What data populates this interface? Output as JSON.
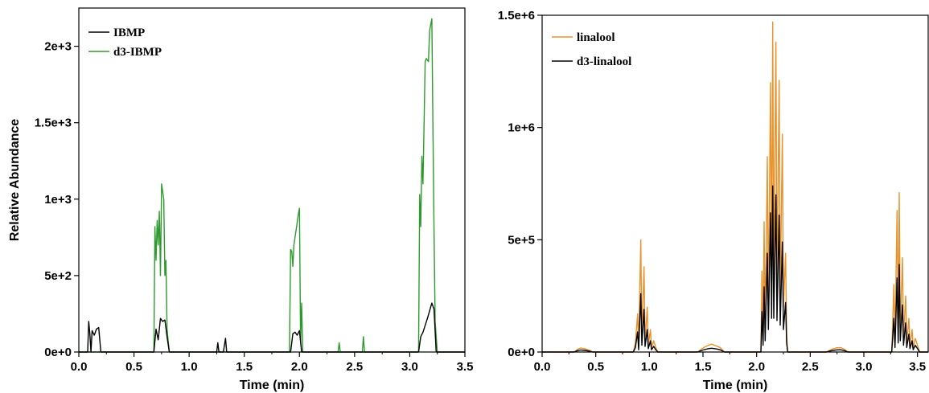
{
  "chart_data": [
    {
      "type": "line",
      "title": "",
      "xlabel": "Time (min)",
      "ylabel": "Relative Abundance",
      "xlim": [
        0,
        3.5
      ],
      "ylim": [
        0,
        2250
      ],
      "xticks": [
        "0.0",
        "0.5",
        "1.0",
        "1.5",
        "2.0",
        "2.5",
        "3.0",
        "3.5"
      ],
      "yticks": [
        "0e+0",
        "5e+2",
        "1e+3",
        "1.5e+3",
        "2e+3"
      ],
      "grid": false,
      "legend": "top-left",
      "series": [
        {
          "name": "IBMP",
          "color": "#000000",
          "points": [
            [
              0.0,
              0
            ],
            [
              0.08,
              0
            ],
            [
              0.09,
              200
            ],
            [
              0.1,
              120
            ],
            [
              0.11,
              0
            ],
            [
              0.12,
              140
            ],
            [
              0.14,
              110
            ],
            [
              0.16,
              150
            ],
            [
              0.18,
              160
            ],
            [
              0.2,
              0
            ],
            [
              0.22,
              0
            ],
            [
              0.68,
              0
            ],
            [
              0.7,
              150
            ],
            [
              0.72,
              80
            ],
            [
              0.74,
              220
            ],
            [
              0.76,
              200
            ],
            [
              0.78,
              210
            ],
            [
              0.8,
              100
            ],
            [
              0.82,
              0
            ],
            [
              1.25,
              0
            ],
            [
              1.26,
              60
            ],
            [
              1.27,
              0
            ],
            [
              1.31,
              0
            ],
            [
              1.33,
              90
            ],
            [
              1.34,
              0
            ],
            [
              1.92,
              0
            ],
            [
              1.94,
              120
            ],
            [
              1.96,
              130
            ],
            [
              1.98,
              110
            ],
            [
              2.0,
              140
            ],
            [
              2.02,
              0
            ],
            [
              3.08,
              0
            ],
            [
              3.1,
              100
            ],
            [
              3.12,
              130
            ],
            [
              3.16,
              220
            ],
            [
              3.2,
              320
            ],
            [
              3.22,
              280
            ],
            [
              3.24,
              0
            ],
            [
              3.26,
              0
            ],
            [
              3.5,
              0
            ]
          ]
        },
        {
          "name": "d3-IBMP",
          "color": "#2e9a2e",
          "points": [
            [
              0.0,
              0
            ],
            [
              0.68,
              0
            ],
            [
              0.69,
              820
            ],
            [
              0.7,
              600
            ],
            [
              0.71,
              860
            ],
            [
              0.72,
              700
            ],
            [
              0.73,
              920
            ],
            [
              0.74,
              500
            ],
            [
              0.75,
              1100
            ],
            [
              0.77,
              1000
            ],
            [
              0.78,
              500
            ],
            [
              0.79,
              600
            ],
            [
              0.8,
              150
            ],
            [
              0.82,
              0
            ],
            [
              1.91,
              0
            ],
            [
              1.92,
              670
            ],
            [
              1.93,
              660
            ],
            [
              1.94,
              560
            ],
            [
              1.95,
              700
            ],
            [
              1.97,
              800
            ],
            [
              1.99,
              900
            ],
            [
              2.0,
              940
            ],
            [
              2.01,
              60
            ],
            [
              2.02,
              320
            ],
            [
              2.03,
              0
            ],
            [
              2.35,
              0
            ],
            [
              2.36,
              60
            ],
            [
              2.37,
              0
            ],
            [
              2.57,
              0
            ],
            [
              2.58,
              100
            ],
            [
              2.59,
              0
            ],
            [
              3.08,
              0
            ],
            [
              3.09,
              1030
            ],
            [
              3.1,
              820
            ],
            [
              3.11,
              1280
            ],
            [
              3.12,
              1100
            ],
            [
              3.14,
              1900
            ],
            [
              3.15,
              1920
            ],
            [
              3.17,
              1900
            ],
            [
              3.18,
              2100
            ],
            [
              3.2,
              2180
            ],
            [
              3.21,
              1500
            ],
            [
              3.22,
              800
            ],
            [
              3.23,
              200
            ],
            [
              3.25,
              0
            ],
            [
              3.5,
              0
            ]
          ]
        }
      ]
    },
    {
      "type": "line",
      "title": "",
      "xlabel": "Time (min)",
      "ylabel": "",
      "xlim": [
        0,
        3.6
      ],
      "ylim": [
        0,
        1500000
      ],
      "xticks": [
        "0.0",
        "0.5",
        "1.0",
        "1.5",
        "2.0",
        "2.5",
        "3.0",
        "3.5"
      ],
      "yticks": [
        "0e+0",
        "5e+5",
        "1e+6",
        "1.5e+6"
      ],
      "grid": false,
      "legend": "top-left",
      "series": [
        {
          "name": "linalool",
          "color": "#e8922c",
          "points": [
            [
              0.0,
              0
            ],
            [
              0.3,
              0
            ],
            [
              0.33,
              12000
            ],
            [
              0.36,
              18000
            ],
            [
              0.4,
              14000
            ],
            [
              0.44,
              8000
            ],
            [
              0.47,
              0
            ],
            [
              0.85,
              0
            ],
            [
              0.87,
              40000
            ],
            [
              0.89,
              170000
            ],
            [
              0.9,
              20000
            ],
            [
              0.92,
              500000
            ],
            [
              0.93,
              60000
            ],
            [
              0.95,
              380000
            ],
            [
              0.96,
              50000
            ],
            [
              0.98,
              200000
            ],
            [
              0.99,
              30000
            ],
            [
              1.01,
              100000
            ],
            [
              1.02,
              20000
            ],
            [
              1.04,
              50000
            ],
            [
              1.06,
              20000
            ],
            [
              1.08,
              0
            ],
            [
              1.45,
              0
            ],
            [
              1.5,
              18000
            ],
            [
              1.55,
              30000
            ],
            [
              1.58,
              35000
            ],
            [
              1.62,
              28000
            ],
            [
              1.66,
              20000
            ],
            [
              1.7,
              0
            ],
            [
              2.04,
              0
            ],
            [
              2.05,
              360000
            ],
            [
              2.06,
              60000
            ],
            [
              2.07,
              580000
            ],
            [
              2.08,
              100000
            ],
            [
              2.1,
              870000
            ],
            [
              2.11,
              200000
            ],
            [
              2.13,
              1200000
            ],
            [
              2.14,
              300000
            ],
            [
              2.15,
              1470000
            ],
            [
              2.16,
              300000
            ],
            [
              2.18,
              1380000
            ],
            [
              2.19,
              280000
            ],
            [
              2.21,
              1210000
            ],
            [
              2.22,
              250000
            ],
            [
              2.24,
              970000
            ],
            [
              2.25,
              200000
            ],
            [
              2.27,
              440000
            ],
            [
              2.28,
              80000
            ],
            [
              2.29,
              0
            ],
            [
              2.65,
              0
            ],
            [
              2.7,
              12000
            ],
            [
              2.74,
              18000
            ],
            [
              2.78,
              20000
            ],
            [
              2.82,
              12000
            ],
            [
              2.85,
              0
            ],
            [
              3.26,
              0
            ],
            [
              3.28,
              300000
            ],
            [
              3.29,
              40000
            ],
            [
              3.31,
              630000
            ],
            [
              3.32,
              80000
            ],
            [
              3.33,
              710000
            ],
            [
              3.34,
              100000
            ],
            [
              3.36,
              420000
            ],
            [
              3.37,
              60000
            ],
            [
              3.39,
              250000
            ],
            [
              3.4,
              40000
            ],
            [
              3.42,
              150000
            ],
            [
              3.43,
              30000
            ],
            [
              3.45,
              100000
            ],
            [
              3.46,
              20000
            ],
            [
              3.48,
              60000
            ],
            [
              3.5,
              30000
            ],
            [
              3.52,
              0
            ],
            [
              3.6,
              0
            ]
          ]
        },
        {
          "name": "d3-linalool",
          "color": "#000000",
          "points": [
            [
              0.0,
              0
            ],
            [
              0.3,
              0
            ],
            [
              0.33,
              6000
            ],
            [
              0.36,
              9000
            ],
            [
              0.4,
              7000
            ],
            [
              0.44,
              4000
            ],
            [
              0.47,
              0
            ],
            [
              0.85,
              0
            ],
            [
              0.87,
              20000
            ],
            [
              0.89,
              90000
            ],
            [
              0.9,
              10000
            ],
            [
              0.92,
              260000
            ],
            [
              0.93,
              30000
            ],
            [
              0.95,
              190000
            ],
            [
              0.96,
              25000
            ],
            [
              0.98,
              100000
            ],
            [
              0.99,
              15000
            ],
            [
              1.01,
              50000
            ],
            [
              1.02,
              10000
            ],
            [
              1.04,
              25000
            ],
            [
              1.06,
              10000
            ],
            [
              1.08,
              0
            ],
            [
              1.45,
              0
            ],
            [
              1.5,
              9000
            ],
            [
              1.55,
              15000
            ],
            [
              1.58,
              17000
            ],
            [
              1.62,
              14000
            ],
            [
              1.66,
              10000
            ],
            [
              1.7,
              0
            ],
            [
              2.04,
              0
            ],
            [
              2.05,
              180000
            ],
            [
              2.06,
              30000
            ],
            [
              2.07,
              290000
            ],
            [
              2.08,
              50000
            ],
            [
              2.1,
              440000
            ],
            [
              2.11,
              100000
            ],
            [
              2.13,
              620000
            ],
            [
              2.14,
              150000
            ],
            [
              2.15,
              740000
            ],
            [
              2.16,
              150000
            ],
            [
              2.18,
              700000
            ],
            [
              2.19,
              140000
            ],
            [
              2.21,
              610000
            ],
            [
              2.22,
              120000
            ],
            [
              2.24,
              490000
            ],
            [
              2.25,
              100000
            ],
            [
              2.27,
              220000
            ],
            [
              2.28,
              40000
            ],
            [
              2.29,
              0
            ],
            [
              2.65,
              0
            ],
            [
              2.7,
              6000
            ],
            [
              2.74,
              9000
            ],
            [
              2.78,
              10000
            ],
            [
              2.82,
              6000
            ],
            [
              2.85,
              0
            ],
            [
              3.26,
              0
            ],
            [
              3.28,
              150000
            ],
            [
              3.29,
              20000
            ],
            [
              3.31,
              330000
            ],
            [
              3.32,
              40000
            ],
            [
              3.33,
              390000
            ],
            [
              3.34,
              50000
            ],
            [
              3.36,
              210000
            ],
            [
              3.37,
              30000
            ],
            [
              3.39,
              130000
            ],
            [
              3.4,
              20000
            ],
            [
              3.42,
              80000
            ],
            [
              3.43,
              15000
            ],
            [
              3.45,
              50000
            ],
            [
              3.46,
              10000
            ],
            [
              3.48,
              30000
            ],
            [
              3.5,
              15000
            ],
            [
              3.52,
              0
            ],
            [
              3.6,
              0
            ]
          ]
        }
      ]
    }
  ]
}
